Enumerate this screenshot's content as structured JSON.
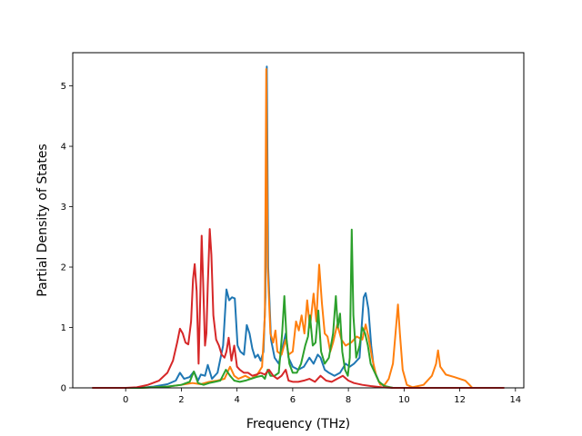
{
  "chart_data": {
    "type": "line",
    "title": "",
    "xlabel": "Frequency (THz)",
    "ylabel": "Partial Density of States",
    "xlim": [
      -1.9,
      14.3
    ],
    "ylim": [
      0,
      5.55
    ],
    "xticks": [
      0,
      2,
      4,
      6,
      8,
      10,
      12,
      14
    ],
    "yticks": [
      0,
      1,
      2,
      3,
      4,
      5
    ],
    "grid": false,
    "legend": "none",
    "series": [
      {
        "color": "#1f77b4",
        "points": [
          [
            -1.2,
            0
          ],
          [
            0.5,
            0
          ],
          [
            1.0,
            0.02
          ],
          [
            1.5,
            0.06
          ],
          [
            1.8,
            0.12
          ],
          [
            1.95,
            0.25
          ],
          [
            2.1,
            0.15
          ],
          [
            2.3,
            0.18
          ],
          [
            2.45,
            0.27
          ],
          [
            2.6,
            0.12
          ],
          [
            2.7,
            0.22
          ],
          [
            2.85,
            0.2
          ],
          [
            2.95,
            0.38
          ],
          [
            3.1,
            0.15
          ],
          [
            3.3,
            0.25
          ],
          [
            3.5,
            0.7
          ],
          [
            3.62,
            1.63
          ],
          [
            3.72,
            1.45
          ],
          [
            3.82,
            1.5
          ],
          [
            3.92,
            1.48
          ],
          [
            4.02,
            0.7
          ],
          [
            4.12,
            0.6
          ],
          [
            4.25,
            0.55
          ],
          [
            4.35,
            1.04
          ],
          [
            4.45,
            0.9
          ],
          [
            4.55,
            0.65
          ],
          [
            4.65,
            0.5
          ],
          [
            4.75,
            0.55
          ],
          [
            4.85,
            0.45
          ],
          [
            4.95,
            0.6
          ],
          [
            5.02,
            1.5
          ],
          [
            5.07,
            5.32
          ],
          [
            5.12,
            2.0
          ],
          [
            5.22,
            0.8
          ],
          [
            5.35,
            0.5
          ],
          [
            5.5,
            0.4
          ],
          [
            5.65,
            0.7
          ],
          [
            5.75,
            0.9
          ],
          [
            5.85,
            0.5
          ],
          [
            6.0,
            0.35
          ],
          [
            6.2,
            0.3
          ],
          [
            6.4,
            0.35
          ],
          [
            6.6,
            0.5
          ],
          [
            6.75,
            0.4
          ],
          [
            6.9,
            0.55
          ],
          [
            7.0,
            0.5
          ],
          [
            7.15,
            0.3
          ],
          [
            7.3,
            0.25
          ],
          [
            7.5,
            0.2
          ],
          [
            7.7,
            0.25
          ],
          [
            7.9,
            0.4
          ],
          [
            8.05,
            0.35
          ],
          [
            8.2,
            0.4
          ],
          [
            8.4,
            0.5
          ],
          [
            8.55,
            1.5
          ],
          [
            8.62,
            1.57
          ],
          [
            8.72,
            1.3
          ],
          [
            8.82,
            0.7
          ],
          [
            8.92,
            0.3
          ],
          [
            9.1,
            0.1
          ],
          [
            9.3,
            0.02
          ],
          [
            9.6,
            0
          ],
          [
            10.5,
            0
          ]
        ]
      },
      {
        "color": "#ff7f0e",
        "points": [
          [
            -1.2,
            0
          ],
          [
            0.5,
            0
          ],
          [
            1.0,
            0.01
          ],
          [
            1.5,
            0.02
          ],
          [
            2.0,
            0.05
          ],
          [
            2.4,
            0.08
          ],
          [
            2.7,
            0.06
          ],
          [
            3.0,
            0.1
          ],
          [
            3.3,
            0.12
          ],
          [
            3.55,
            0.15
          ],
          [
            3.75,
            0.35
          ],
          [
            3.9,
            0.2
          ],
          [
            4.05,
            0.15
          ],
          [
            4.3,
            0.2
          ],
          [
            4.5,
            0.15
          ],
          [
            4.7,
            0.2
          ],
          [
            4.9,
            0.35
          ],
          [
            5.0,
            1.2
          ],
          [
            5.05,
            5.28
          ],
          [
            5.1,
            2.0
          ],
          [
            5.2,
            0.9
          ],
          [
            5.3,
            0.75
          ],
          [
            5.38,
            0.95
          ],
          [
            5.45,
            0.6
          ],
          [
            5.6,
            0.55
          ],
          [
            5.75,
            0.8
          ],
          [
            5.85,
            0.55
          ],
          [
            6.0,
            0.6
          ],
          [
            6.12,
            1.1
          ],
          [
            6.22,
            0.95
          ],
          [
            6.32,
            1.2
          ],
          [
            6.42,
            0.9
          ],
          [
            6.52,
            1.45
          ],
          [
            6.62,
            1.0
          ],
          [
            6.75,
            1.56
          ],
          [
            6.85,
            1.1
          ],
          [
            6.95,
            2.04
          ],
          [
            7.05,
            1.4
          ],
          [
            7.15,
            0.9
          ],
          [
            7.25,
            0.85
          ],
          [
            7.35,
            0.6
          ],
          [
            7.45,
            0.75
          ],
          [
            7.6,
            1.05
          ],
          [
            7.75,
            0.8
          ],
          [
            7.9,
            0.7
          ],
          [
            8.1,
            0.75
          ],
          [
            8.3,
            0.85
          ],
          [
            8.5,
            0.8
          ],
          [
            8.62,
            1.05
          ],
          [
            8.72,
            0.85
          ],
          [
            8.85,
            0.5
          ],
          [
            9.0,
            0.2
          ],
          [
            9.15,
            0.05
          ],
          [
            9.3,
            0.05
          ],
          [
            9.45,
            0.15
          ],
          [
            9.6,
            0.4
          ],
          [
            9.72,
            1.05
          ],
          [
            9.78,
            1.38
          ],
          [
            9.85,
            0.9
          ],
          [
            9.95,
            0.3
          ],
          [
            10.1,
            0.05
          ],
          [
            10.3,
            0.01
          ],
          [
            10.7,
            0.05
          ],
          [
            11.0,
            0.2
          ],
          [
            11.15,
            0.4
          ],
          [
            11.22,
            0.62
          ],
          [
            11.3,
            0.35
          ],
          [
            11.5,
            0.22
          ],
          [
            11.8,
            0.18
          ],
          [
            12.2,
            0.12
          ],
          [
            12.35,
            0.05
          ],
          [
            12.45,
            0
          ],
          [
            13.0,
            0
          ]
        ]
      },
      {
        "color": "#2ca02c",
        "points": [
          [
            -1.2,
            0
          ],
          [
            0.5,
            0
          ],
          [
            1.0,
            0.01
          ],
          [
            1.5,
            0.02
          ],
          [
            2.0,
            0.05
          ],
          [
            2.3,
            0.1
          ],
          [
            2.45,
            0.27
          ],
          [
            2.6,
            0.08
          ],
          [
            2.8,
            0.05
          ],
          [
            3.0,
            0.08
          ],
          [
            3.2,
            0.1
          ],
          [
            3.4,
            0.12
          ],
          [
            3.6,
            0.3
          ],
          [
            3.75,
            0.2
          ],
          [
            3.9,
            0.12
          ],
          [
            4.1,
            0.1
          ],
          [
            4.3,
            0.12
          ],
          [
            4.5,
            0.15
          ],
          [
            4.7,
            0.18
          ],
          [
            4.9,
            0.2
          ],
          [
            5.0,
            0.15
          ],
          [
            5.1,
            0.3
          ],
          [
            5.2,
            0.2
          ],
          [
            5.35,
            0.2
          ],
          [
            5.5,
            0.25
          ],
          [
            5.62,
            0.9
          ],
          [
            5.7,
            1.52
          ],
          [
            5.78,
            0.8
          ],
          [
            5.88,
            0.4
          ],
          [
            6.0,
            0.25
          ],
          [
            6.15,
            0.25
          ],
          [
            6.3,
            0.4
          ],
          [
            6.45,
            0.7
          ],
          [
            6.55,
            0.85
          ],
          [
            6.62,
            1.2
          ],
          [
            6.72,
            0.7
          ],
          [
            6.82,
            0.75
          ],
          [
            6.92,
            1.28
          ],
          [
            7.02,
            0.6
          ],
          [
            7.15,
            0.4
          ],
          [
            7.3,
            0.5
          ],
          [
            7.45,
            0.9
          ],
          [
            7.55,
            1.52
          ],
          [
            7.62,
            1.0
          ],
          [
            7.7,
            1.23
          ],
          [
            7.78,
            0.6
          ],
          [
            7.88,
            0.3
          ],
          [
            7.98,
            0.2
          ],
          [
            8.05,
            0.5
          ],
          [
            8.12,
            2.62
          ],
          [
            8.18,
            1.2
          ],
          [
            8.28,
            0.5
          ],
          [
            8.4,
            0.7
          ],
          [
            8.5,
            1.0
          ],
          [
            8.6,
            0.9
          ],
          [
            8.7,
            0.7
          ],
          [
            8.8,
            0.4
          ],
          [
            8.95,
            0.25
          ],
          [
            9.1,
            0.1
          ],
          [
            9.3,
            0.03
          ],
          [
            9.6,
            0
          ],
          [
            10.5,
            0
          ]
        ]
      },
      {
        "color": "#d62728",
        "points": [
          [
            -1.2,
            0
          ],
          [
            0,
            0
          ],
          [
            0.4,
            0.01
          ],
          [
            0.8,
            0.05
          ],
          [
            1.2,
            0.12
          ],
          [
            1.5,
            0.25
          ],
          [
            1.7,
            0.45
          ],
          [
            1.85,
            0.75
          ],
          [
            1.95,
            0.98
          ],
          [
            2.05,
            0.9
          ],
          [
            2.15,
            0.75
          ],
          [
            2.25,
            0.72
          ],
          [
            2.35,
            1.1
          ],
          [
            2.42,
            1.8
          ],
          [
            2.48,
            2.05
          ],
          [
            2.55,
            1.6
          ],
          [
            2.62,
            0.4
          ],
          [
            2.68,
            1.5
          ],
          [
            2.73,
            2.52
          ],
          [
            2.78,
            1.8
          ],
          [
            2.85,
            0.7
          ],
          [
            2.9,
            0.9
          ],
          [
            2.95,
            1.7
          ],
          [
            3.02,
            2.63
          ],
          [
            3.08,
            2.2
          ],
          [
            3.15,
            1.2
          ],
          [
            3.25,
            0.8
          ],
          [
            3.35,
            0.7
          ],
          [
            3.45,
            0.55
          ],
          [
            3.55,
            0.5
          ],
          [
            3.62,
            0.6
          ],
          [
            3.7,
            0.83
          ],
          [
            3.8,
            0.45
          ],
          [
            3.9,
            0.7
          ],
          [
            4.0,
            0.35
          ],
          [
            4.1,
            0.3
          ],
          [
            4.25,
            0.25
          ],
          [
            4.4,
            0.25
          ],
          [
            4.55,
            0.2
          ],
          [
            4.7,
            0.22
          ],
          [
            4.85,
            0.25
          ],
          [
            5.0,
            0.22
          ],
          [
            5.15,
            0.3
          ],
          [
            5.3,
            0.2
          ],
          [
            5.45,
            0.15
          ],
          [
            5.6,
            0.2
          ],
          [
            5.75,
            0.3
          ],
          [
            5.85,
            0.12
          ],
          [
            6.0,
            0.1
          ],
          [
            6.2,
            0.1
          ],
          [
            6.4,
            0.12
          ],
          [
            6.6,
            0.15
          ],
          [
            6.8,
            0.1
          ],
          [
            7.0,
            0.2
          ],
          [
            7.2,
            0.12
          ],
          [
            7.4,
            0.1
          ],
          [
            7.6,
            0.15
          ],
          [
            7.8,
            0.2
          ],
          [
            8.0,
            0.12
          ],
          [
            8.2,
            0.08
          ],
          [
            8.5,
            0.05
          ],
          [
            8.8,
            0.03
          ],
          [
            9.2,
            0.01
          ],
          [
            9.6,
            0
          ],
          [
            13.6,
            0
          ]
        ]
      }
    ]
  }
}
